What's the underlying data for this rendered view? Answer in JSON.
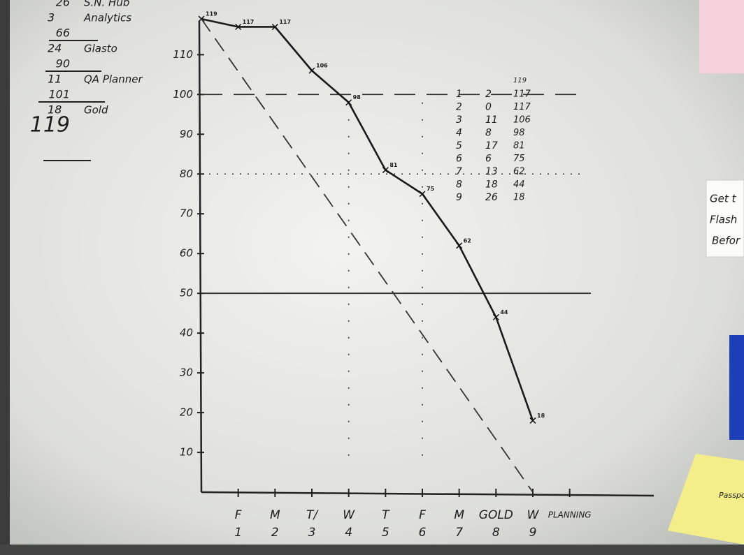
{
  "chart_data": {
    "type": "line",
    "categories": [
      "F",
      "M",
      "T/",
      "W",
      "T",
      "F",
      "M",
      "GOLD",
      "W",
      "PLANNING"
    ],
    "category_days": [
      "1",
      "2",
      "3",
      "4",
      "5",
      "6",
      "7",
      "8",
      "9",
      null
    ],
    "series": [
      {
        "name": null,
        "style": "solid",
        "x": [
          0,
          1,
          2,
          3,
          4,
          5,
          6,
          7,
          8,
          9
        ],
        "values": [
          119,
          117,
          117,
          106,
          98,
          81,
          75,
          62,
          44,
          18
        ],
        "color": "#1a1a1a"
      },
      {
        "name": null,
        "style": "dashed",
        "x": [
          0,
          9
        ],
        "values": [
          119,
          0
        ],
        "color": "#333333"
      }
    ],
    "xlim": [
      0,
      12
    ],
    "ylim": [
      0,
      122
    ],
    "yticks": [
      10,
      20,
      30,
      40,
      50,
      60,
      70,
      80,
      90,
      100,
      110
    ],
    "reference_y": [
      100,
      80,
      50
    ],
    "reference_x": [
      4,
      6
    ]
  },
  "side_table": {
    "header": "119",
    "rows": [
      [
        "1",
        "2",
        "117"
      ],
      [
        "2",
        "0",
        "117"
      ],
      [
        "3",
        "11",
        "106"
      ],
      [
        "4",
        "8",
        "98"
      ],
      [
        "5",
        "17",
        "81"
      ],
      [
        "6",
        "6",
        "75"
      ],
      [
        "7",
        "13",
        "62"
      ],
      [
        "8",
        "18",
        "44"
      ],
      [
        "9",
        "26",
        "18"
      ]
    ]
  },
  "notes": [
    [
      "26",
      "S.N. Hub"
    ],
    [
      "3",
      "Analytics"
    ],
    [
      "66",
      ""
    ],
    [
      "24",
      "Glasto"
    ],
    [
      "90",
      ""
    ],
    [
      "11",
      "QA Planner"
    ],
    [
      "101",
      ""
    ],
    [
      "18",
      "Gold"
    ],
    [
      "119",
      ""
    ]
  ],
  "sticky_notes": [
    "Get t",
    "Flash",
    "Befor",
    "Passport"
  ]
}
